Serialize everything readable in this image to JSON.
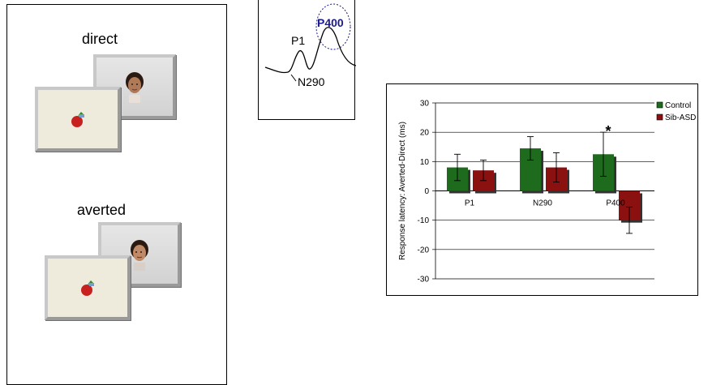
{
  "stimulus_panel": {
    "direct_label": "direct",
    "averted_label": "averted"
  },
  "erp_inset": {
    "p1_label": "P1",
    "p400_label": "P400",
    "n290_label": "N290",
    "p400_color": "#1a1a8c"
  },
  "chart_data": {
    "type": "bar",
    "title": "",
    "categories": [
      "P1",
      "N290",
      "P400"
    ],
    "series": [
      {
        "name": "Control",
        "values": [
          8,
          14.5,
          12.5
        ],
        "error": [
          4.5,
          4,
          7.5
        ],
        "color": "#1e6b1e"
      },
      {
        "name": "Sib-ASD",
        "values": [
          7,
          8,
          -10
        ],
        "error": [
          3.5,
          5,
          4.5
        ],
        "color": "#8b1010"
      }
    ],
    "ylabel": "Response latency: Averted-Direct (ms)",
    "xlabel": "",
    "ylim": [
      -30,
      30
    ],
    "yticks": [
      "30",
      "20",
      "10",
      "0",
      "-10",
      "-20",
      "-30"
    ],
    "grid": true,
    "legend_position": "top-right",
    "significance_marker": "*"
  }
}
